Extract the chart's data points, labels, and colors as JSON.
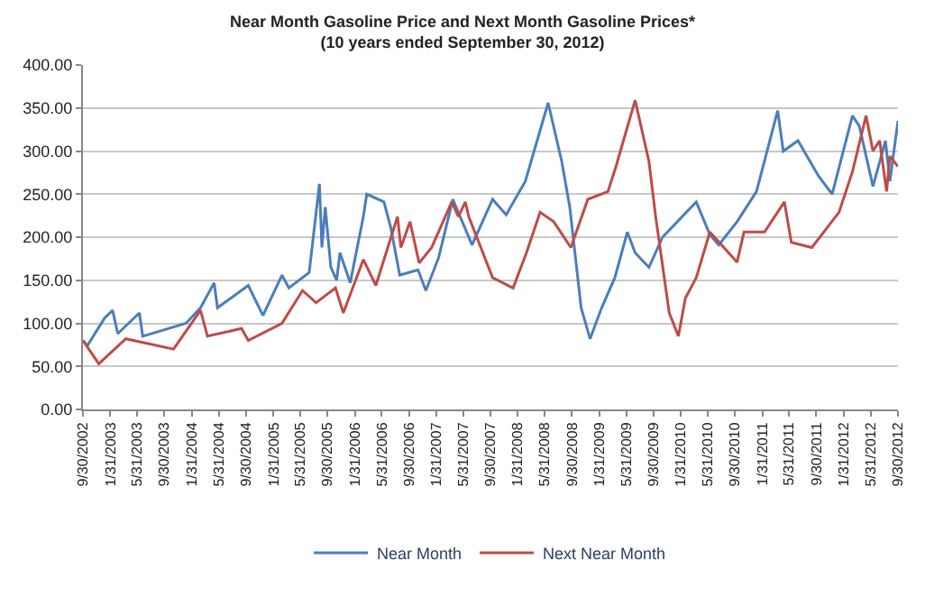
{
  "chart_data": {
    "type": "line",
    "title": "Near Month Gasoline Price and Next Month Gasoline Prices*",
    "subtitle": "(10 years ended September 30, 2012)",
    "xlim": [
      "2002-09-30",
      "2012-09-30"
    ],
    "xticks": [
      {
        "value": "2002-09-30",
        "label": "9/30/2002"
      },
      {
        "value": "2003-01-31",
        "label": "1/31/2003"
      },
      {
        "value": "2003-05-31",
        "label": "5/31/2003"
      },
      {
        "value": "2003-09-30",
        "label": "9/30/2003"
      },
      {
        "value": "2004-01-31",
        "label": "1/31/2004"
      },
      {
        "value": "2004-05-31",
        "label": "5/31/2004"
      },
      {
        "value": "2004-09-30",
        "label": "9/30/2004"
      },
      {
        "value": "2005-01-31",
        "label": "1/31/2005"
      },
      {
        "value": "2005-05-31",
        "label": "5/31/2005"
      },
      {
        "value": "2005-09-30",
        "label": "9/30/2005"
      },
      {
        "value": "2006-01-31",
        "label": "1/31/2006"
      },
      {
        "value": "2006-05-31",
        "label": "5/31/2006"
      },
      {
        "value": "2006-09-30",
        "label": "9/30/2006"
      },
      {
        "value": "2007-01-31",
        "label": "1/31/2007"
      },
      {
        "value": "2007-05-31",
        "label": "5/31/2007"
      },
      {
        "value": "2007-09-30",
        "label": "9/30/2007"
      },
      {
        "value": "2008-01-31",
        "label": "1/31/2008"
      },
      {
        "value": "2008-05-31",
        "label": "5/31/2008"
      },
      {
        "value": "2008-09-30",
        "label": "9/30/2008"
      },
      {
        "value": "2009-01-31",
        "label": "1/31/2009"
      },
      {
        "value": "2009-05-31",
        "label": "5/31/2009"
      },
      {
        "value": "2009-09-30",
        "label": "9/30/2009"
      },
      {
        "value": "2010-01-31",
        "label": "1/31/2010"
      },
      {
        "value": "2010-05-31",
        "label": "5/31/2010"
      },
      {
        "value": "2010-09-30",
        "label": "9/30/2010"
      },
      {
        "value": "2011-01-31",
        "label": "1/31/2011"
      },
      {
        "value": "2011-05-31",
        "label": "5/31/2011"
      },
      {
        "value": "2011-09-30",
        "label": "9/30/2011"
      },
      {
        "value": "2012-01-31",
        "label": "1/31/2012"
      },
      {
        "value": "2012-05-31",
        "label": "5/31/2012"
      },
      {
        "value": "2012-09-30",
        "label": "9/30/2012"
      }
    ],
    "ylim": [
      0,
      400
    ],
    "yticks": [
      {
        "value": 0,
        "label": "0.00"
      },
      {
        "value": 50,
        "label": "50.00"
      },
      {
        "value": 100,
        "label": "100.00"
      },
      {
        "value": 150,
        "label": "150.00"
      },
      {
        "value": 200,
        "label": "200.00"
      },
      {
        "value": 250,
        "label": "250.00"
      },
      {
        "value": 300,
        "label": "300.00"
      },
      {
        "value": 350,
        "label": "350.00"
      },
      {
        "value": 400,
        "label": "400.00"
      }
    ],
    "grid": "y",
    "legend": "bottom",
    "series": [
      {
        "name": "Near Month",
        "color": "#4a7ebb",
        "x": [
          "2002-09-30",
          "2002-10-20",
          "2003-01-05",
          "2003-02-10",
          "2003-03-05",
          "2003-06-10",
          "2003-06-25",
          "2004-01-05",
          "2004-03-10",
          "2004-05-10",
          "2004-05-25",
          "2004-10-10",
          "2004-12-15",
          "2005-03-10",
          "2005-04-10",
          "2005-07-10",
          "2005-08-25",
          "2005-09-05",
          "2005-09-20",
          "2005-10-15",
          "2005-11-10",
          "2005-11-25",
          "2006-01-10",
          "2006-03-10",
          "2006-03-25",
          "2006-06-10",
          "2006-07-10",
          "2006-08-20",
          "2006-11-10",
          "2006-12-15",
          "2007-02-10",
          "2007-04-15",
          "2007-07-10",
          "2007-10-10",
          "2007-12-10",
          "2008-03-05",
          "2008-06-15",
          "2008-08-15",
          "2008-09-20",
          "2008-11-10",
          "2008-12-20",
          "2009-02-10",
          "2009-04-10",
          "2009-06-05",
          "2009-07-10",
          "2009-09-10",
          "2009-11-10",
          "2010-04-10",
          "2010-06-10",
          "2010-07-20",
          "2010-10-10",
          "2011-01-05",
          "2011-04-10",
          "2011-05-05",
          "2011-07-10",
          "2011-10-10",
          "2011-12-10",
          "2012-03-10",
          "2012-04-10",
          "2012-06-10",
          "2012-08-05",
          "2012-08-25",
          "2012-09-30"
        ],
        "values": [
          80,
          74,
          106,
          115,
          88,
          112,
          85,
          100,
          118,
          147,
          118,
          144,
          109,
          156,
          141,
          159,
          262,
          188,
          235,
          165,
          150,
          182,
          147,
          224,
          250,
          241,
          212,
          156,
          162,
          138,
          176,
          244,
          191,
          244,
          226,
          265,
          356,
          288,
          235,
          118,
          82,
          118,
          153,
          206,
          182,
          165,
          200,
          241,
          203,
          191,
          218,
          253,
          347,
          300,
          312,
          271,
          250,
          341,
          329,
          259,
          312,
          265,
          335
        ]
      },
      {
        "name": "Next Near Month",
        "color": "#be4b48",
        "x": [
          "2002-09-30",
          "2002-12-10",
          "2003-04-10",
          "2003-11-10",
          "2004-03-10",
          "2004-04-10",
          "2004-09-10",
          "2004-10-10",
          "2005-03-10",
          "2005-06-10",
          "2005-08-10",
          "2005-11-05",
          "2005-12-10",
          "2006-03-10",
          "2006-05-05",
          "2006-08-10",
          "2006-08-25",
          "2006-10-05",
          "2006-11-15",
          "2007-01-10",
          "2007-04-10",
          "2007-05-10",
          "2007-06-10",
          "2007-06-25",
          "2007-10-10",
          "2008-01-10",
          "2008-03-10",
          "2008-05-10",
          "2008-07-10",
          "2008-09-25",
          "2008-12-10",
          "2009-03-10",
          "2009-04-15",
          "2009-07-10",
          "2009-09-10",
          "2009-10-10",
          "2009-12-10",
          "2010-01-20",
          "2010-02-20",
          "2010-04-10",
          "2010-06-10",
          "2010-10-10",
          "2010-11-10",
          "2011-02-10",
          "2011-05-10",
          "2011-06-10",
          "2011-09-10",
          "2012-01-10",
          "2012-03-10",
          "2012-05-10",
          "2012-06-10",
          "2012-07-10",
          "2012-08-10",
          "2012-08-25",
          "2012-09-30"
        ],
        "values": [
          80,
          53,
          82,
          70,
          115,
          85,
          94,
          80,
          100,
          138,
          124,
          141,
          112,
          174,
          144,
          224,
          188,
          218,
          170,
          188,
          241,
          224,
          241,
          224,
          153,
          141,
          182,
          229,
          218,
          188,
          244,
          253,
          282,
          359,
          288,
          224,
          112,
          85,
          129,
          153,
          206,
          171,
          206,
          206,
          241,
          194,
          188,
          229,
          276,
          341,
          300,
          312,
          253,
          294,
          282
        ]
      }
    ]
  }
}
